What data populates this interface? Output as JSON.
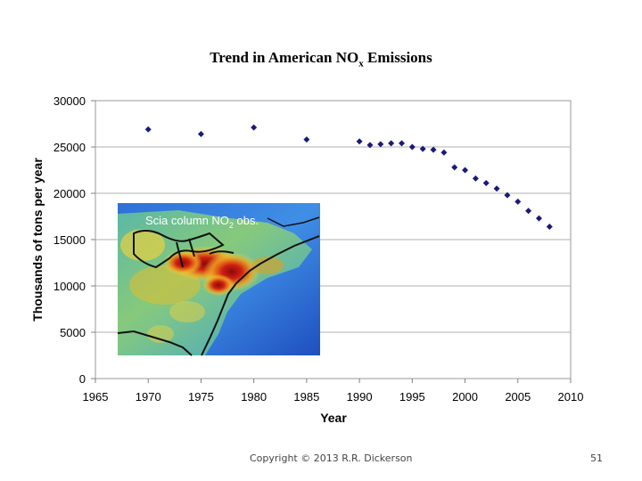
{
  "slide": {
    "title_main": "Trend in American NO",
    "title_sub": "x",
    "title_end": " Emissions",
    "copyright": "Copyright © 2013 R.R. Dickerson",
    "page_number": "51"
  },
  "inset": {
    "label_main": "Scia column NO",
    "label_sub": "2",
    "label_end": " obs."
  },
  "chart_data": {
    "type": "scatter",
    "title": "Trend in American NOx Emissions",
    "xlabel": "Year",
    "ylabel": "Thousands of tons per year",
    "xlim": [
      1965,
      2010
    ],
    "ylim": [
      0,
      30000
    ],
    "x_ticks": [
      1965,
      1970,
      1975,
      1980,
      1985,
      1990,
      1995,
      2000,
      2005,
      2010
    ],
    "y_ticks": [
      0,
      5000,
      10000,
      15000,
      20000,
      25000,
      30000
    ],
    "grid": "horizontal",
    "series": [
      {
        "name": "NOx emissions",
        "color": "#1a1a7a",
        "marker": "diamond",
        "points": [
          [
            1970,
            26900
          ],
          [
            1975,
            26400
          ],
          [
            1980,
            27100
          ],
          [
            1985,
            25800
          ],
          [
            1990,
            25600
          ],
          [
            1991,
            25200
          ],
          [
            1992,
            25300
          ],
          [
            1993,
            25400
          ],
          [
            1994,
            25400
          ],
          [
            1995,
            25000
          ],
          [
            1996,
            24800
          ],
          [
            1997,
            24700
          ],
          [
            1998,
            24400
          ],
          [
            1999,
            22800
          ],
          [
            2000,
            22500
          ],
          [
            2001,
            21600
          ],
          [
            2002,
            21100
          ],
          [
            2003,
            20500
          ],
          [
            2004,
            19800
          ],
          [
            2005,
            19100
          ],
          [
            2006,
            18100
          ],
          [
            2007,
            17300
          ],
          [
            2008,
            16400
          ]
        ]
      }
    ]
  }
}
